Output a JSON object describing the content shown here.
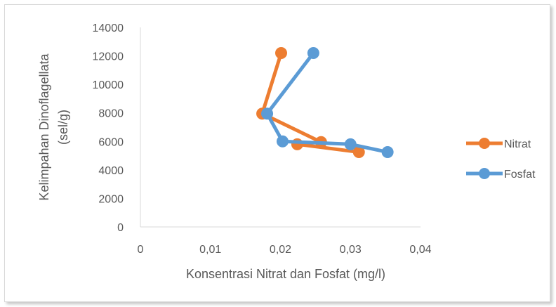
{
  "chart_data": {
    "type": "scatter",
    "title": "",
    "xlabel": "Konsentrasi  Nitrat dan Fosfat (mg/l)",
    "ylabel": "Kelimpahan Dinoflagellata (sel/g)",
    "ylabel_lines": [
      "Kelimpahan Dinoflagellata",
      "(sel/g)"
    ],
    "xlim": [
      0,
      0.04
    ],
    "ylim": [
      0,
      14000
    ],
    "x_ticks": [
      0,
      0.01,
      0.02,
      0.03,
      0.04
    ],
    "x_tick_labels": [
      "0",
      "0,01",
      "0,02",
      "0,03",
      "0,04"
    ],
    "y_ticks": [
      0,
      2000,
      4000,
      6000,
      8000,
      10000,
      12000,
      14000
    ],
    "y_tick_labels": [
      "0",
      "2000",
      "4000",
      "6000",
      "8000",
      "10000",
      "12000",
      "14000"
    ],
    "grid": false,
    "legend_position": "right",
    "series": [
      {
        "name": "Nitrat",
        "color": "#ed7d31",
        "points": [
          {
            "x": 0.0201,
            "y": 12200
          },
          {
            "x": 0.0174,
            "y": 7950
          },
          {
            "x": 0.0258,
            "y": 5950
          },
          {
            "x": 0.0224,
            "y": 5800
          },
          {
            "x": 0.0312,
            "y": 5250
          }
        ]
      },
      {
        "name": "Fosfat",
        "color": "#5b9bd5",
        "points": [
          {
            "x": 0.0247,
            "y": 12200
          },
          {
            "x": 0.0181,
            "y": 7950
          },
          {
            "x": 0.0203,
            "y": 6000
          },
          {
            "x": 0.03,
            "y": 5800
          },
          {
            "x": 0.0353,
            "y": 5250
          }
        ]
      }
    ]
  }
}
